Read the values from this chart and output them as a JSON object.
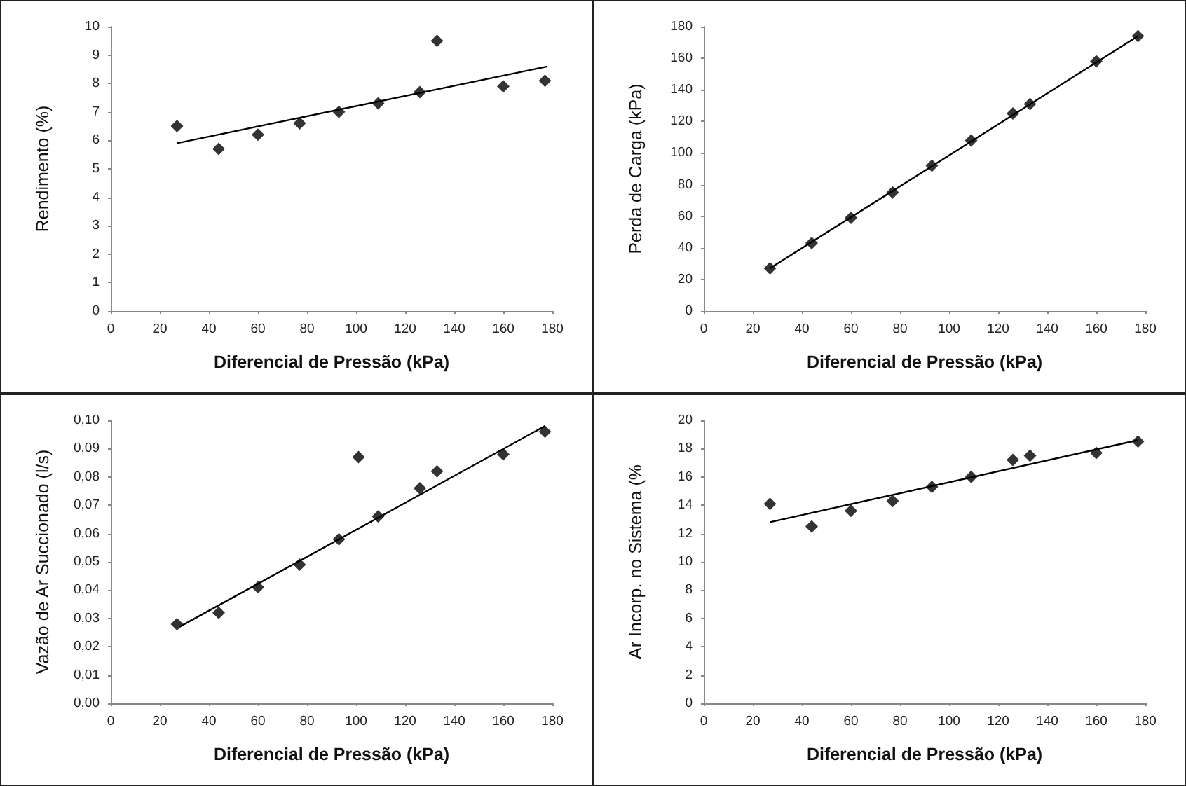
{
  "chart_data": [
    {
      "type": "scatter",
      "xlabel": "Diferencial de Pressão (kPa)",
      "ylabel": "Rendimento (%)",
      "xlim": [
        0,
        180
      ],
      "xticks": [
        0,
        20,
        40,
        60,
        80,
        100,
        120,
        140,
        160,
        180
      ],
      "ylim": [
        0,
        10
      ],
      "yticks": [
        0,
        1,
        2,
        3,
        4,
        5,
        6,
        7,
        8,
        9,
        10
      ],
      "marker": "diamond",
      "series": [
        {
          "color": "#000000",
          "x": [
            27,
            44,
            60,
            77,
            93,
            109,
            126,
            133,
            160,
            177
          ],
          "values": [
            6.5,
            5.7,
            6.2,
            6.6,
            7.0,
            7.3,
            7.7,
            9.5,
            7.9,
            8.1
          ]
        },
        {
          "type": "line",
          "marker": "none",
          "color": "#000000",
          "x": [
            27,
            178
          ],
          "values": [
            5.9,
            8.6
          ]
        }
      ]
    },
    {
      "type": "scatter",
      "xlabel": "Diferencial de Pressão (kPa)",
      "ylabel": "Perda de Carga (kPa)",
      "xlim": [
        0,
        180
      ],
      "xticks": [
        0,
        20,
        40,
        60,
        80,
        100,
        120,
        140,
        160,
        180
      ],
      "ylim": [
        0,
        180
      ],
      "yticks": [
        0,
        20,
        40,
        60,
        80,
        100,
        120,
        140,
        160,
        180
      ],
      "marker": "diamond",
      "series": [
        {
          "color": "#000000",
          "x": [
            27,
            44,
            60,
            77,
            93,
            109,
            126,
            133,
            160,
            177
          ],
          "values": [
            27,
            43,
            59,
            75,
            92,
            108,
            125,
            131,
            158,
            174
          ]
        },
        {
          "type": "line",
          "marker": "none",
          "color": "#000000",
          "x": [
            27,
            177
          ],
          "values": [
            27,
            174
          ]
        }
      ]
    },
    {
      "type": "scatter",
      "xlabel": "Diferencial de Pressão (kPa)",
      "ylabel": "Vazão de Ar Succionado (l/s)",
      "xlim": [
        0,
        180
      ],
      "xticks": [
        0,
        20,
        40,
        60,
        80,
        100,
        120,
        140,
        160,
        180
      ],
      "ylim": [
        0,
        0.1
      ],
      "yticks": [
        {
          "value": 0,
          "label": "0,00"
        },
        {
          "value": 0.01,
          "label": "0,01"
        },
        {
          "value": 0.02,
          "label": "0,02"
        },
        {
          "value": 0.03,
          "label": "0,03"
        },
        {
          "value": 0.04,
          "label": "0,04"
        },
        {
          "value": 0.05,
          "label": "0,05"
        },
        {
          "value": 0.06,
          "label": "0,06"
        },
        {
          "value": 0.07,
          "label": "0,07"
        },
        {
          "value": 0.08,
          "label": "0,08"
        },
        {
          "value": 0.09,
          "label": "0,09"
        },
        {
          "value": 0.1,
          "label": "0,10"
        }
      ],
      "marker": "diamond",
      "series": [
        {
          "color": "#000000",
          "x": [
            27,
            44,
            60,
            77,
            93,
            101,
            109,
            126,
            133,
            160,
            177
          ],
          "values": [
            0.028,
            0.032,
            0.041,
            0.049,
            0.058,
            0.087,
            0.066,
            0.076,
            0.082,
            0.088,
            0.096
          ]
        },
        {
          "type": "line",
          "marker": "none",
          "color": "#000000",
          "x": [
            28,
            177
          ],
          "values": [
            0.027,
            0.098
          ]
        }
      ]
    },
    {
      "type": "scatter",
      "xlabel": "Diferencial de Pressão (kPa)",
      "ylabel": "Ar Incorp. no Sistema (%",
      "xlim": [
        0,
        180
      ],
      "xticks": [
        0,
        20,
        40,
        60,
        80,
        100,
        120,
        140,
        160,
        180
      ],
      "ylim": [
        0,
        20
      ],
      "yticks": [
        0,
        2,
        4,
        6,
        8,
        10,
        12,
        14,
        16,
        18,
        20
      ],
      "marker": "diamond",
      "series": [
        {
          "color": "#000000",
          "x": [
            27,
            44,
            60,
            77,
            93,
            109,
            126,
            133,
            160,
            177
          ],
          "values": [
            14.1,
            12.5,
            13.6,
            14.3,
            15.3,
            16.0,
            17.2,
            17.5,
            17.7,
            18.5
          ]
        },
        {
          "type": "line",
          "marker": "none",
          "color": "#000000",
          "x": [
            27,
            177
          ],
          "values": [
            12.8,
            18.6
          ]
        }
      ]
    }
  ]
}
